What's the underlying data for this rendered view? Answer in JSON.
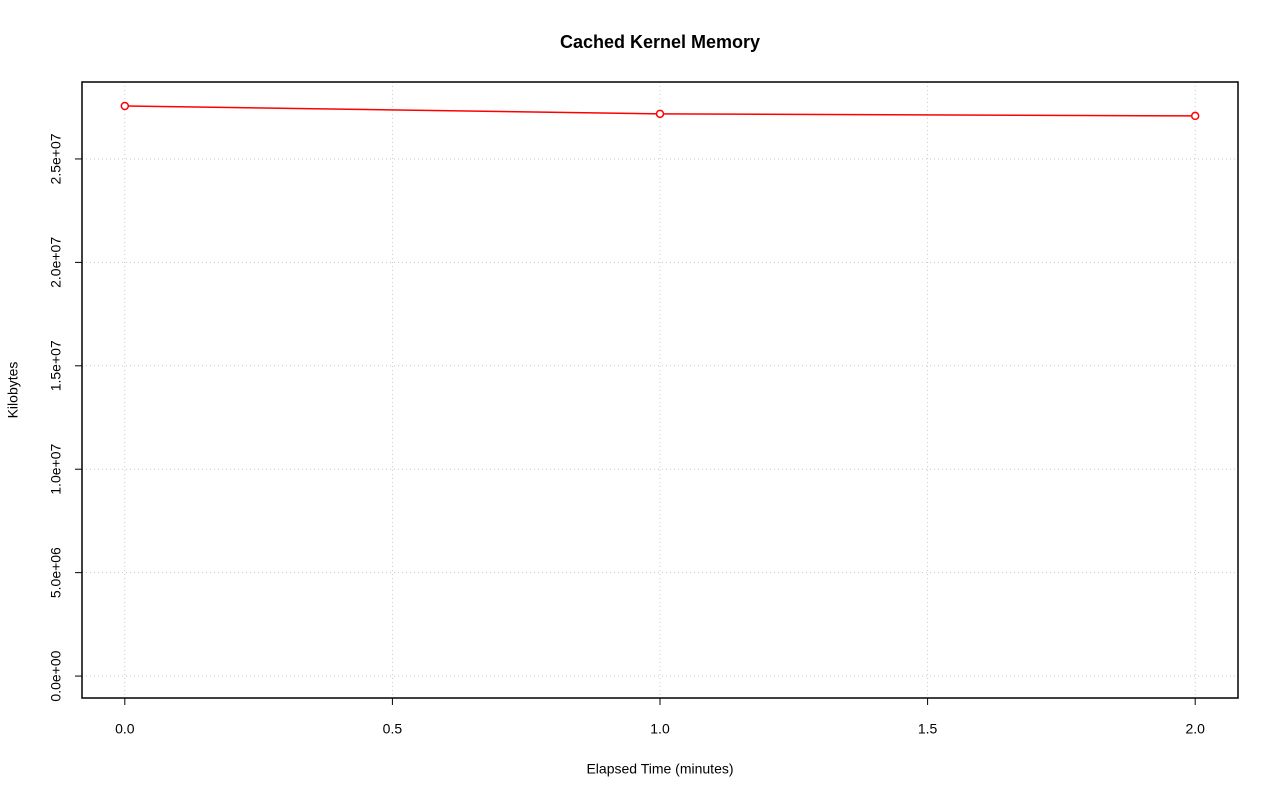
{
  "chart_data": {
    "type": "line",
    "title": "Cached Kernel Memory",
    "x_label": "Elapsed Time (minutes)",
    "y_label": "Kilobytes",
    "x": [
      0,
      1,
      2
    ],
    "series": [
      {
        "color": "#ff0000",
        "values": [
          27560000,
          27180000,
          27080000
        ]
      }
    ],
    "xlim": [
      -0.08,
      2.08
    ],
    "ylim": [
      -1060000,
      28720000
    ],
    "xticks": [
      {
        "value": 0,
        "label": "0.0"
      },
      {
        "value": 0.5,
        "label": "0.5"
      },
      {
        "value": 1,
        "label": "1.0"
      },
      {
        "value": 1.5,
        "label": "1.5"
      },
      {
        "value": 2,
        "label": "2.0"
      }
    ],
    "yticks": [
      {
        "value": 0,
        "label": "0.0e+00"
      },
      {
        "value": 5000000,
        "label": "5.0e+06"
      },
      {
        "value": 10000000,
        "label": "1.0e+07"
      },
      {
        "value": 15000000,
        "label": "1.5e+07"
      },
      {
        "value": 20000000,
        "label": "2.0e+07"
      },
      {
        "value": 25000000,
        "label": "2.5e+07"
      }
    ],
    "grid": true
  }
}
